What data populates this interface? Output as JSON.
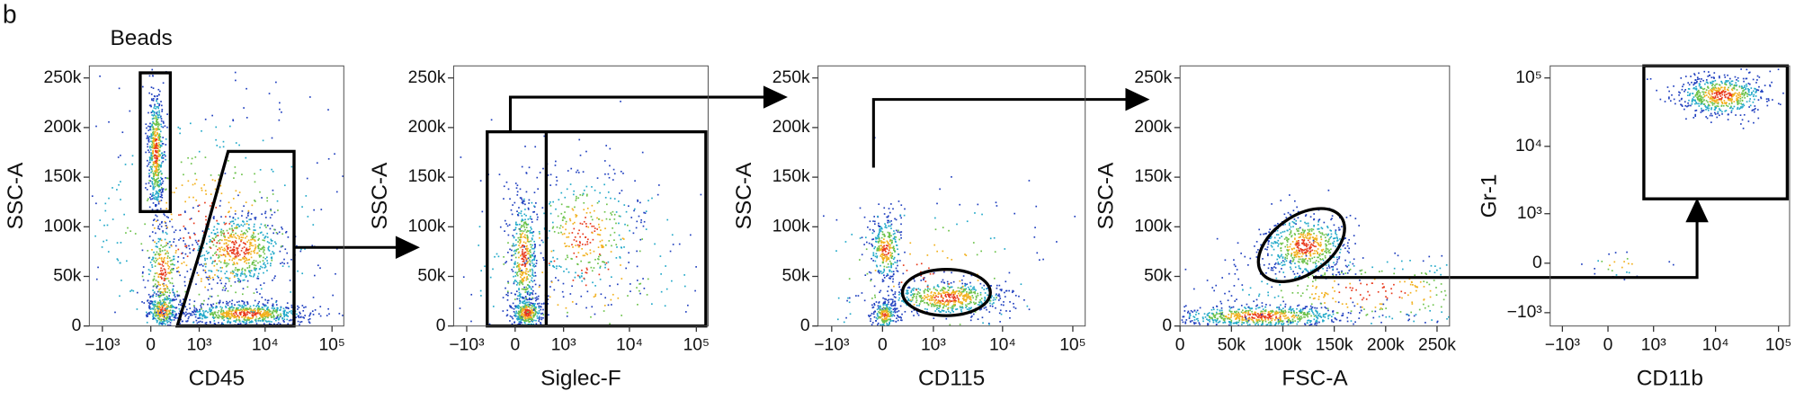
{
  "panel_label": "b",
  "chart_data": [
    {
      "type": "scatter",
      "annotation": "Beads",
      "x_label": "CD45",
      "y_label": "SSC-A",
      "xscale": "biexponential",
      "yscale": "linear",
      "xlim": [
        -1600,
        150000
      ],
      "ylim": [
        0,
        262144
      ],
      "xticks": [
        {
          "value": -1000,
          "label": "−10³"
        },
        0,
        {
          "value": 1000,
          "label": "10³"
        },
        {
          "value": 10000,
          "label": "10⁴"
        },
        {
          "value": 100000,
          "label": "10⁵"
        }
      ],
      "yticks": [
        0,
        {
          "value": 50000,
          "label": "50k"
        },
        {
          "value": 100000,
          "label": "100k"
        },
        {
          "value": 150000,
          "label": "150k"
        },
        {
          "value": 200000,
          "label": "200k"
        },
        {
          "value": 250000,
          "label": "250k"
        }
      ]
    },
    {
      "type": "scatter",
      "x_label": "Siglec-F",
      "y_label": "SSC-A",
      "xscale": "biexponential",
      "yscale": "linear",
      "xlim": [
        -1600,
        150000
      ],
      "ylim": [
        0,
        262144
      ],
      "xticks": [
        {
          "value": -1000,
          "label": "−10³"
        },
        0,
        {
          "value": 1000,
          "label": "10³"
        },
        {
          "value": 10000,
          "label": "10⁴"
        },
        {
          "value": 100000,
          "label": "10⁵"
        }
      ],
      "yticks": [
        0,
        {
          "value": 50000,
          "label": "50k"
        },
        {
          "value": 100000,
          "label": "100k"
        },
        {
          "value": 150000,
          "label": "150k"
        },
        {
          "value": 200000,
          "label": "200k"
        },
        {
          "value": 250000,
          "label": "250k"
        }
      ]
    },
    {
      "type": "scatter",
      "x_label": "CD115",
      "y_label": "SSC-A",
      "xscale": "biexponential",
      "yscale": "linear",
      "xlim": [
        -1600,
        150000
      ],
      "ylim": [
        0,
        262144
      ],
      "xticks": [
        {
          "value": -1000,
          "label": "−10³"
        },
        0,
        {
          "value": 1000,
          "label": "10³"
        },
        {
          "value": 10000,
          "label": "10⁴"
        },
        {
          "value": 100000,
          "label": "10⁵"
        }
      ],
      "yticks": [
        0,
        {
          "value": 50000,
          "label": "50k"
        },
        {
          "value": 100000,
          "label": "100k"
        },
        {
          "value": 150000,
          "label": "150k"
        },
        {
          "value": 200000,
          "label": "200k"
        },
        {
          "value": 250000,
          "label": "250k"
        }
      ]
    },
    {
      "type": "scatter",
      "x_label": "FSC-A",
      "y_label": "SSC-A",
      "xscale": "linear",
      "yscale": "linear",
      "xlim": [
        0,
        262144
      ],
      "ylim": [
        0,
        262144
      ],
      "xticks": [
        0,
        {
          "value": 50000,
          "label": "50k"
        },
        {
          "value": 100000,
          "label": "100k"
        },
        {
          "value": 150000,
          "label": "150k"
        },
        {
          "value": 200000,
          "label": "200k"
        },
        {
          "value": 250000,
          "label": "250k"
        }
      ],
      "yticks": [
        0,
        {
          "value": 50000,
          "label": "50k"
        },
        {
          "value": 100000,
          "label": "100k"
        },
        {
          "value": 150000,
          "label": "150k"
        },
        {
          "value": 200000,
          "label": "200k"
        },
        {
          "value": 250000,
          "label": "250k"
        }
      ]
    },
    {
      "type": "scatter",
      "x_label": "CD11b",
      "y_label": "Gr-1",
      "xscale": "biexponential",
      "yscale": "biexponential",
      "xlim": [
        -1600,
        150000
      ],
      "ylim": [
        -1600,
        150000
      ],
      "xticks": [
        {
          "value": -1000,
          "label": "−10³"
        },
        0,
        {
          "value": 1000,
          "label": "10³"
        },
        {
          "value": 10000,
          "label": "10⁴"
        },
        {
          "value": 100000,
          "label": "10⁵"
        }
      ],
      "yticks": [
        {
          "value": -1000,
          "label": "−10³"
        },
        0,
        {
          "value": 1000,
          "label": "10³"
        },
        {
          "value": 10000,
          "label": "10⁴"
        },
        {
          "value": 100000,
          "label": "10⁵"
        }
      ]
    }
  ]
}
